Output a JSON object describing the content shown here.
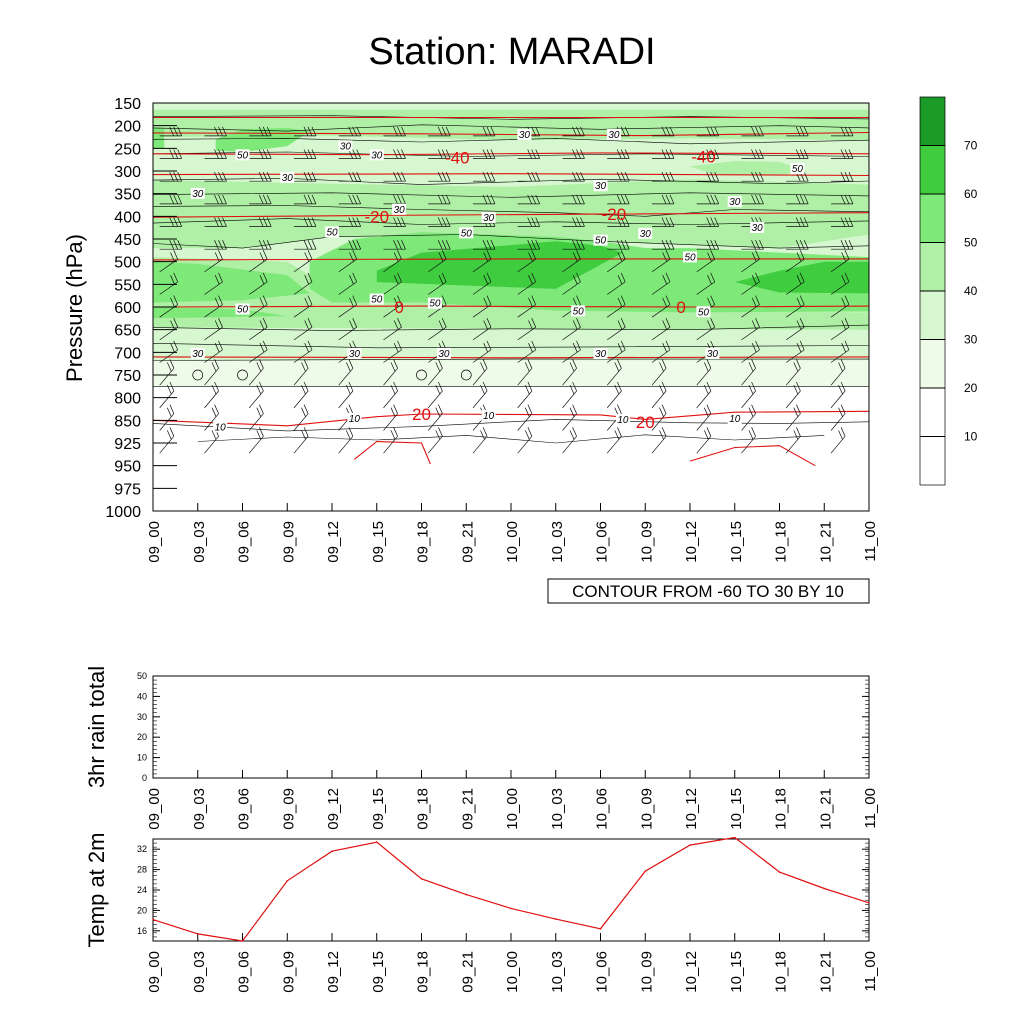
{
  "title": "Station: MARADI",
  "colors": {
    "green_levels": [
      "#ffffff",
      "#eefbe9",
      "#d6f7cf",
      "#b0efa6",
      "#7ee879",
      "#3fcc3f",
      "#1c9a28"
    ],
    "temp_contour": "#e01010",
    "line": "#000000"
  },
  "chart_data": [
    {
      "type": "heatmap",
      "name": "time-pressure cross-section",
      "ylabel": "Pressure (hPa)",
      "pressure_levels": [
        "150",
        "200",
        "250",
        "300",
        "350",
        "400",
        "450",
        "500",
        "550",
        "600",
        "650",
        "700",
        "750",
        "800",
        "850",
        "925",
        "950",
        "975",
        "1000"
      ],
      "time_labels": [
        "09_00",
        "09_03",
        "09_06",
        "09_09",
        "09_12",
        "09_15",
        "09_18",
        "09_21",
        "10_00",
        "10_03",
        "10_06",
        "10_09",
        "10_12",
        "10_15",
        "10_18",
        "10_21",
        "11_00"
      ],
      "rh_fill_levels": [
        10,
        20,
        30,
        40,
        50,
        60,
        70
      ],
      "colorbar_labels": [
        "70",
        "60",
        "50",
        "40",
        "30",
        "20",
        "10"
      ],
      "contour_note": "CONTOUR FROM -60 TO 30 BY 10",
      "rh_contour_labels": [
        {
          "text": "30",
          "t": 4.3,
          "p": 250
        },
        {
          "text": "30",
          "t": 8.3,
          "p": 225
        },
        {
          "text": "30",
          "t": 10.3,
          "p": 225
        },
        {
          "text": "50",
          "t": 2.0,
          "p": 270
        },
        {
          "text": "30",
          "t": 5.0,
          "p": 270
        },
        {
          "text": "30",
          "t": 3.0,
          "p": 320
        },
        {
          "text": "30",
          "t": 1.0,
          "p": 355
        },
        {
          "text": "30",
          "t": 10.0,
          "p": 338
        },
        {
          "text": "50",
          "t": 14.4,
          "p": 300
        },
        {
          "text": "30",
          "t": 13.0,
          "p": 373
        },
        {
          "text": "30",
          "t": 5.5,
          "p": 390
        },
        {
          "text": "30",
          "t": 7.5,
          "p": 408
        },
        {
          "text": "30",
          "t": 11.0,
          "p": 443
        },
        {
          "text": "30",
          "t": 13.5,
          "p": 430
        },
        {
          "text": "50",
          "t": 4.0,
          "p": 440
        },
        {
          "text": "50",
          "t": 7.0,
          "p": 442
        },
        {
          "text": "50",
          "t": 10.0,
          "p": 458
        },
        {
          "text": "50",
          "t": 12.0,
          "p": 495
        },
        {
          "text": "50",
          "t": 5.0,
          "p": 588
        },
        {
          "text": "50",
          "t": 6.3,
          "p": 597
        },
        {
          "text": "50",
          "t": 2.0,
          "p": 610
        },
        {
          "text": "50",
          "t": 9.5,
          "p": 614
        },
        {
          "text": "50",
          "t": 12.3,
          "p": 616
        },
        {
          "text": "30",
          "t": 1.0,
          "p": 708
        },
        {
          "text": "30",
          "t": 4.5,
          "p": 708
        },
        {
          "text": "30",
          "t": 6.5,
          "p": 708
        },
        {
          "text": "30",
          "t": 10.0,
          "p": 708
        },
        {
          "text": "30",
          "t": 12.5,
          "p": 708
        },
        {
          "text": "10",
          "t": 1.5,
          "p": 880
        },
        {
          "text": "10",
          "t": 4.5,
          "p": 852
        },
        {
          "text": "10",
          "t": 7.5,
          "p": 845
        },
        {
          "text": "10",
          "t": 10.5,
          "p": 856
        },
        {
          "text": "10",
          "t": 13.0,
          "p": 853
        }
      ],
      "temp_contour_labels": [
        {
          "text": "-40",
          "t": 6.8,
          "p": 270
        },
        {
          "text": "-40",
          "t": 12.3,
          "p": 268
        },
        {
          "text": "-20",
          "t": 5.0,
          "p": 400
        },
        {
          "text": "-20",
          "t": 10.3,
          "p": 395
        },
        {
          "text": "0",
          "t": 5.5,
          "p": 600
        },
        {
          "text": "0",
          "t": 11.8,
          "p": 600
        },
        {
          "text": "20",
          "t": 6.0,
          "p": 836
        },
        {
          "text": "20",
          "t": 11.0,
          "p": 855
        }
      ],
      "temp_contour_values": [
        -60,
        -50,
        -40,
        -30,
        -20,
        -10,
        0,
        10,
        20,
        30
      ]
    },
    {
      "type": "bar",
      "name": "3hr rain total",
      "ylabel": "3hr rain total",
      "yticks": [
        "0",
        "10",
        "20",
        "30",
        "40",
        "50"
      ],
      "ylim": [
        0,
        50
      ],
      "categories": [
        "09_00",
        "09_03",
        "09_06",
        "09_09",
        "09_12",
        "09_15",
        "09_18",
        "09_21",
        "10_00",
        "10_03",
        "10_06",
        "10_09",
        "10_12",
        "10_15",
        "10_18",
        "10_21",
        "11_00"
      ],
      "values": [
        0,
        0,
        0,
        0,
        0,
        0,
        0,
        0,
        0,
        0,
        0,
        0,
        0,
        0,
        0,
        0,
        0
      ]
    },
    {
      "type": "line",
      "name": "Temp at 2m",
      "ylabel": "Temp at 2m",
      "yticks": [
        "16",
        "20",
        "24",
        "28",
        "32"
      ],
      "ylim": [
        13.5,
        34.5
      ],
      "categories": [
        "09_00",
        "09_03",
        "09_06",
        "09_09",
        "09_12",
        "09_15",
        "09_18",
        "09_21",
        "10_00",
        "10_03",
        "10_06",
        "10_09",
        "10_12",
        "10_15",
        "10_18",
        "10_21",
        "11_00"
      ],
      "values": [
        18.2,
        15.4,
        14.0,
        25.8,
        31.6,
        33.4,
        26.2,
        23.1,
        20.4,
        18.3,
        16.4,
        27.7,
        32.8,
        34.3,
        27.5,
        24.3,
        21.5
      ]
    }
  ]
}
